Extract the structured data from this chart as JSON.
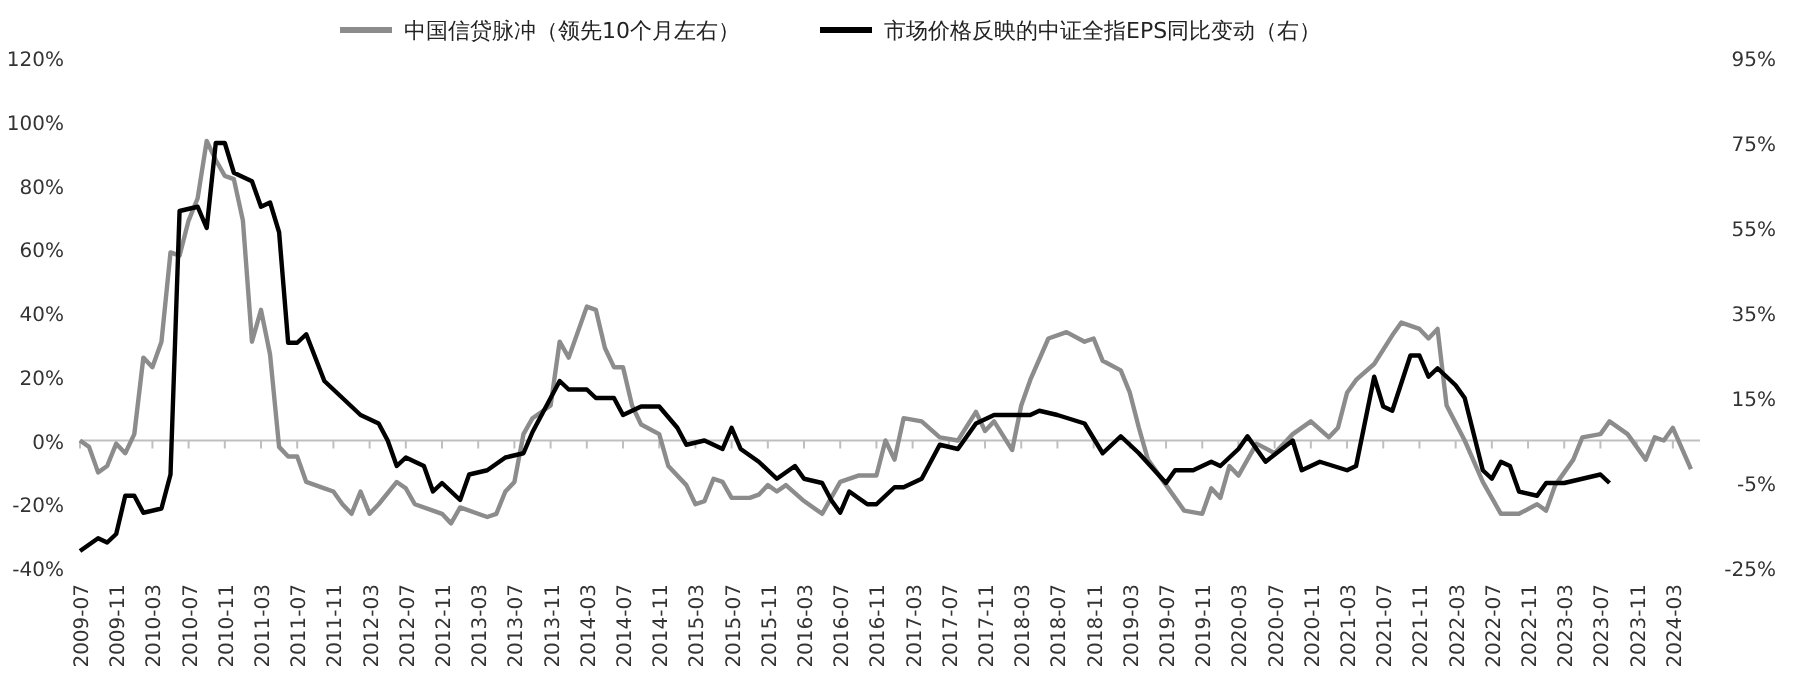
{
  "chart_data": {
    "type": "line",
    "x": [
      "2009-07",
      "2009-08",
      "2009-09",
      "2009-10",
      "2009-11",
      "2009-12",
      "2010-01",
      "2010-02",
      "2010-03",
      "2010-04",
      "2010-05",
      "2010-06",
      "2010-07",
      "2010-08",
      "2010-09",
      "2010-10",
      "2010-11",
      "2010-12",
      "2011-01",
      "2011-02",
      "2011-03",
      "2011-04",
      "2011-05",
      "2011-06",
      "2011-07",
      "2011-08",
      "2011-10",
      "2011-11",
      "2011-12",
      "2012-01",
      "2012-02",
      "2012-03",
      "2012-04",
      "2012-06",
      "2012-07",
      "2012-08",
      "2012-10",
      "2012-11",
      "2012-12",
      "2013-01",
      "2013-04",
      "2013-05",
      "2013-06",
      "2013-07",
      "2013-08",
      "2013-09",
      "2013-11",
      "2013-12",
      "2014-01",
      "2014-03",
      "2014-04",
      "2014-05",
      "2014-06",
      "2014-07",
      "2014-08",
      "2014-09",
      "2014-11",
      "2014-12",
      "2015-02",
      "2015-03",
      "2015-04",
      "2015-05",
      "2015-06",
      "2015-07",
      "2015-09",
      "2015-10",
      "2015-11",
      "2015-12",
      "2016-01",
      "2016-03",
      "2016-05",
      "2016-06",
      "2016-07",
      "2016-09",
      "2016-11",
      "2016-12",
      "2017-01",
      "2017-02",
      "2017-04",
      "2017-06",
      "2017-08",
      "2017-10",
      "2017-11",
      "2017-12",
      "2018-02",
      "2018-03",
      "2018-04",
      "2018-06",
      "2018-08",
      "2018-10",
      "2018-11",
      "2018-12",
      "2019-02",
      "2019-03",
      "2019-04",
      "2019-05",
      "2019-07",
      "2019-09",
      "2019-11",
      "2019-12",
      "2020-01",
      "2020-02",
      "2020-03",
      "2020-05",
      "2020-07",
      "2020-09",
      "2020-11",
      "2021-01",
      "2021-02",
      "2021-03",
      "2021-04",
      "2021-06",
      "2021-08",
      "2021-09",
      "2021-11",
      "2021-12",
      "2022-01",
      "2022-02",
      "2022-04",
      "2022-06",
      "2022-08",
      "2022-10",
      "2022-12",
      "2023-01",
      "2023-02",
      "2023-04",
      "2023-05",
      "2023-07",
      "2023-08",
      "2023-10",
      "2023-12",
      "2024-01",
      "2024-02",
      "2024-03",
      "2024-05"
    ],
    "series": [
      {
        "name": "中国信贷脉冲（领先10个月左右）",
        "color": "#8c8c8c",
        "values": [
          0,
          -2,
          -10,
          -8,
          -1,
          -4,
          2,
          26,
          23,
          31,
          59,
          58,
          69,
          76,
          94,
          88,
          83,
          82,
          69,
          31,
          41,
          27,
          -2,
          -5,
          -5,
          -13,
          -15,
          -16,
          -20,
          -23,
          -16,
          -23,
          -20,
          -13,
          -15,
          -20,
          -22,
          -23,
          -26,
          -21,
          -24,
          -23,
          -16,
          -13,
          2,
          7,
          11,
          31,
          26,
          42,
          41,
          29,
          23,
          23,
          11,
          5,
          2,
          -8,
          -14,
          -20,
          -19,
          -12,
          -13,
          -18,
          -18,
          -17,
          -14,
          -16,
          -14,
          -19,
          -23,
          -18,
          -13,
          -11,
          -11,
          0,
          -6,
          7,
          6,
          1,
          0,
          9,
          3,
          6,
          -3,
          11,
          19,
          32,
          34,
          31,
          32,
          25,
          22,
          15,
          4,
          -6,
          -14,
          -22,
          -23,
          -15,
          -18,
          -8,
          -11,
          -1,
          -4,
          2,
          6,
          1,
          4,
          15,
          19,
          24,
          33,
          37,
          35,
          32,
          35,
          11,
          0,
          -13,
          -23,
          -23,
          -20,
          -22,
          -14,
          -6,
          1,
          2,
          6,
          2,
          -6,
          1,
          0,
          4,
          -9
        ]
      },
      {
        "name": "市场价格反映的中证全指EPS同比变动（右）",
        "color": "#000000",
        "axis": "y2",
        "x": [
          "2009-07",
          "2009-09",
          "2009-10",
          "2009-11",
          "2009-12",
          "2010-01",
          "2010-02",
          "2010-04",
          "2010-05",
          "2010-06",
          "2010-08",
          "2010-09",
          "2010-10",
          "2010-11",
          "2010-12",
          "2011-02",
          "2011-03",
          "2011-04",
          "2011-05",
          "2011-06",
          "2011-07",
          "2011-08",
          "2011-10",
          "2011-12",
          "2012-02",
          "2012-04",
          "2012-05",
          "2012-06",
          "2012-07",
          "2012-09",
          "2012-10",
          "2012-11",
          "2013-01",
          "2013-02",
          "2013-04",
          "2013-06",
          "2013-08",
          "2013-09",
          "2013-12",
          "2014-01",
          "2014-03",
          "2014-04",
          "2014-06",
          "2014-07",
          "2014-09",
          "2014-11",
          "2015-01",
          "2015-02",
          "2015-04",
          "2015-06",
          "2015-07",
          "2015-08",
          "2015-10",
          "2015-12",
          "2016-02",
          "2016-03",
          "2016-05",
          "2016-06",
          "2016-07",
          "2016-08",
          "2016-10",
          "2016-11",
          "2017-01",
          "2017-02",
          "2017-04",
          "2017-06",
          "2017-08",
          "2017-10",
          "2017-12",
          "2018-04",
          "2018-05",
          "2018-07",
          "2018-10",
          "2018-12",
          "2019-02",
          "2019-04",
          "2019-07",
          "2019-08",
          "2019-10",
          "2019-12",
          "2020-01",
          "2020-03",
          "2020-04",
          "2020-06",
          "2020-09",
          "2020-10",
          "2020-12",
          "2021-03",
          "2021-04",
          "2021-06",
          "2021-07",
          "2021-08",
          "2021-10",
          "2021-11",
          "2021-12",
          "2022-01",
          "2022-03",
          "2022-04",
          "2022-06",
          "2022-07",
          "2022-08",
          "2022-09",
          "2022-10",
          "2022-12",
          "2023-01",
          "2023-03",
          "2023-05",
          "2023-07",
          "2023-08"
        ],
        "values": [
          -21,
          -18,
          -19,
          -17,
          -8,
          -8,
          -12,
          -11,
          -3,
          59,
          60,
          55,
          75,
          75,
          68,
          66,
          60,
          61,
          54,
          28,
          28,
          30,
          19,
          15,
          11,
          9,
          5,
          -1,
          1,
          -1,
          -7,
          -5,
          -9,
          -3,
          -2,
          1,
          2,
          7,
          19,
          17,
          17,
          15,
          15,
          11,
          13,
          13,
          8,
          4,
          5,
          3,
          8,
          3,
          0,
          -4,
          -1,
          -4,
          -5,
          -9,
          -12,
          -7,
          -10,
          -10,
          -6,
          -6,
          -4,
          4,
          3,
          9,
          11,
          11,
          12,
          11,
          9,
          2,
          6,
          2,
          -5,
          -2,
          -2,
          0,
          -1,
          3,
          6,
          0,
          5,
          -2,
          0,
          -2,
          -1,
          20,
          13,
          12,
          25,
          25,
          20,
          22,
          18,
          15,
          -2,
          -4,
          0,
          -1,
          -7,
          -8,
          -5,
          -5,
          -4,
          -3,
          -5
        ]
      }
    ],
    "xlim": [
      "2009-07",
      "2024-06"
    ],
    "xticks": [
      "2009-07",
      "2009-11",
      "2010-03",
      "2010-07",
      "2010-11",
      "2011-03",
      "2011-07",
      "2011-11",
      "2012-03",
      "2012-07",
      "2012-11",
      "2013-03",
      "2013-07",
      "2013-11",
      "2014-03",
      "2014-07",
      "2014-11",
      "2015-03",
      "2015-07",
      "2015-11",
      "2016-03",
      "2016-07",
      "2016-11",
      "2017-03",
      "2017-07",
      "2017-11",
      "2018-03",
      "2018-07",
      "2018-11",
      "2019-03",
      "2019-07",
      "2019-11",
      "2020-03",
      "2020-07",
      "2020-11",
      "2021-03",
      "2021-07",
      "2021-11",
      "2022-03",
      "2022-07",
      "2022-11",
      "2023-03",
      "2023-07",
      "2023-11",
      "2024-03"
    ],
    "ylim": [
      -40,
      120
    ],
    "yticks": [
      {
        "value": -40,
        "label": "-40%"
      },
      {
        "value": -20,
        "label": "-20%"
      },
      {
        "value": 0,
        "label": "0%"
      },
      {
        "value": 20,
        "label": "20%"
      },
      {
        "value": 40,
        "label": "40%"
      },
      {
        "value": 60,
        "label": "60%"
      },
      {
        "value": 80,
        "label": "80%"
      },
      {
        "value": 100,
        "label": "100%"
      },
      {
        "value": 120,
        "label": "120%"
      }
    ],
    "y2lim": [
      -25,
      95
    ],
    "y2ticks": [
      {
        "value": -25,
        "label": "-25%"
      },
      {
        "value": -5,
        "label": "-5%"
      },
      {
        "value": 15,
        "label": "15%"
      },
      {
        "value": 35,
        "label": "35%"
      },
      {
        "value": 55,
        "label": "55%"
      },
      {
        "value": 75,
        "label": "75%"
      },
      {
        "value": 95,
        "label": "95%"
      }
    ],
    "ref_lines": [
      {
        "axis": "y",
        "value": 0,
        "color": "#bfbfbf"
      }
    ],
    "legend": "top",
    "marker": "none",
    "line_style": "solid"
  }
}
